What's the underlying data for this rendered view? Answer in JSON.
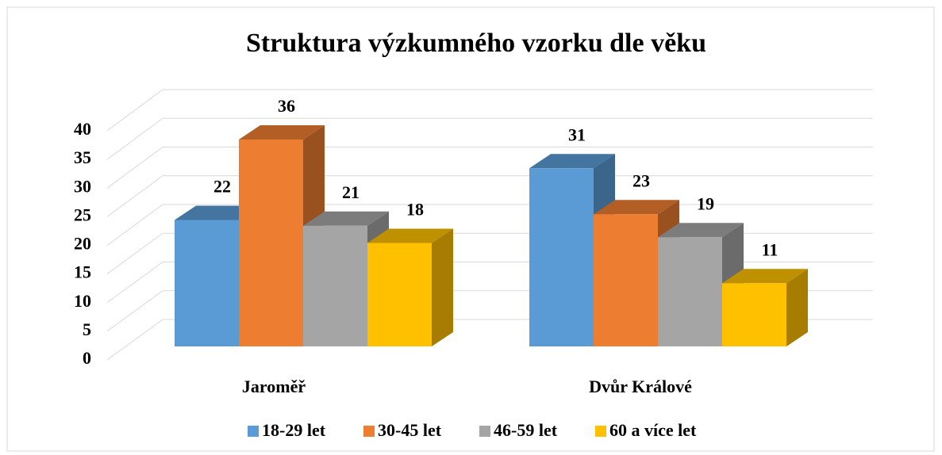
{
  "chart_data": {
    "type": "bar3d",
    "title": "Struktura výzkumného vzorku dle věku",
    "categories": [
      "Jaroměř",
      "Dvůr Králové"
    ],
    "series": [
      {
        "name": "18-29 let",
        "color": "#5b9bd5",
        "values": [
          22,
          31
        ]
      },
      {
        "name": "30-45 let",
        "color": "#ed7d31",
        "values": [
          36,
          23
        ]
      },
      {
        "name": "46-59 let",
        "color": "#a5a5a5",
        "values": [
          21,
          19
        ]
      },
      {
        "name": "60 a více let",
        "color": "#ffc000",
        "values": [
          18,
          11
        ]
      }
    ],
    "ylim": [
      0,
      40
    ],
    "yticks": [
      0,
      5,
      10,
      15,
      20,
      25,
      30,
      35,
      40
    ],
    "grid": true,
    "legend": "bottom"
  }
}
